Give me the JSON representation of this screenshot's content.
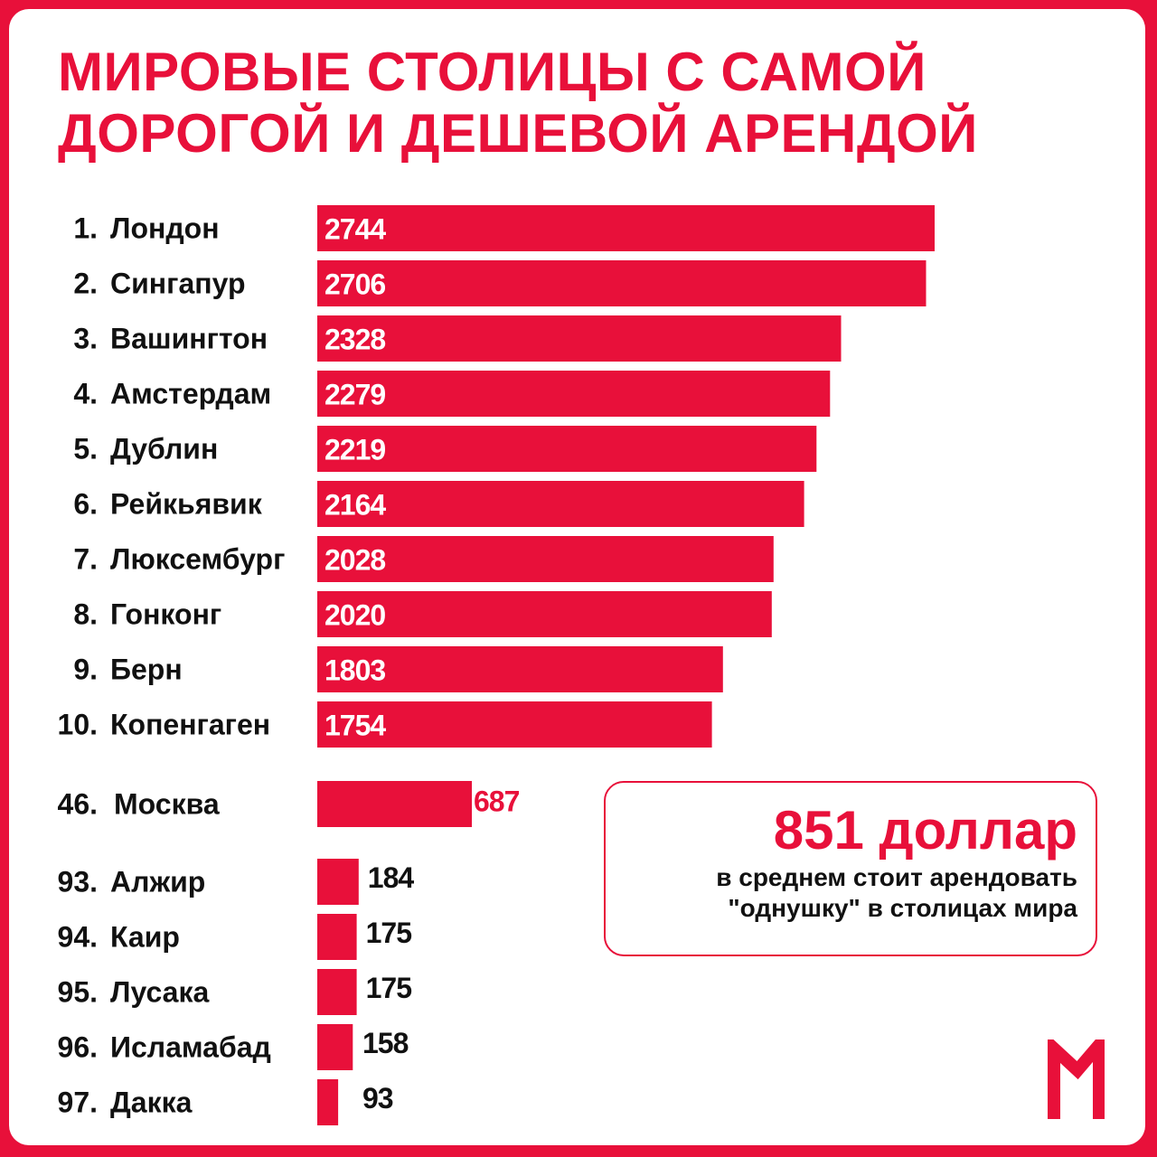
{
  "title": {
    "line1": "МИРОВЫЕ СТОЛИЦЫ С САМОЙ",
    "line2": "ДОРОГОЙ И ДЕШЕВОЙ АРЕНДОЙ"
  },
  "info": {
    "big": "851 доллар",
    "line1": "в среднем стоит арендовать",
    "line2": "\"однушку\" в столицах мира"
  },
  "colors": {
    "accent": "#e8103a",
    "text": "#111111",
    "background": "#ffffff"
  },
  "logo": {
    "icon": "m-logo-icon"
  },
  "chart_data": {
    "type": "bar",
    "orientation": "horizontal",
    "title": "МИРОВЫЕ СТОЛИЦЫ С САМОЙ ДОРОГОЙ И ДЕШЕВОЙ АРЕНДОЙ",
    "xlim": [
      0,
      2800
    ],
    "grid": false,
    "groups": [
      {
        "label_position": "inside",
        "items": [
          {
            "rank": "1.",
            "city": "Лондон",
            "value": 2744
          },
          {
            "rank": "2.",
            "city": "Сингапур",
            "value": 2706
          },
          {
            "rank": "3.",
            "city": "Вашингтон",
            "value": 2328
          },
          {
            "rank": "4.",
            "city": "Амстердам",
            "value": 2279
          },
          {
            "rank": "5.",
            "city": "Дублин",
            "value": 2219
          },
          {
            "rank": "6.",
            "city": "Рейкьявик",
            "value": 2164
          },
          {
            "rank": "7.",
            "city": "Люксембург",
            "value": 2028
          },
          {
            "rank": "8.",
            "city": "Гонконг",
            "value": 2020
          },
          {
            "rank": "9.",
            "city": "Берн",
            "value": 1803
          },
          {
            "rank": "10.",
            "city": "Копенгаген",
            "value": 1754
          }
        ]
      },
      {
        "label_position": "outside-accent",
        "items": [
          {
            "rank": "46.",
            "city": "Москва",
            "value": 687
          }
        ]
      },
      {
        "label_position": "outside",
        "items": [
          {
            "rank": "93.",
            "city": "Алжир",
            "value": 184
          },
          {
            "rank": "94.",
            "city": "Каир",
            "value": 175
          },
          {
            "rank": "95.",
            "city": "Лусака",
            "value": 175
          },
          {
            "rank": "96.",
            "city": "Исламабад",
            "value": 158
          },
          {
            "rank": "97.",
            "city": "Дакка",
            "value": 93
          }
        ]
      }
    ]
  }
}
